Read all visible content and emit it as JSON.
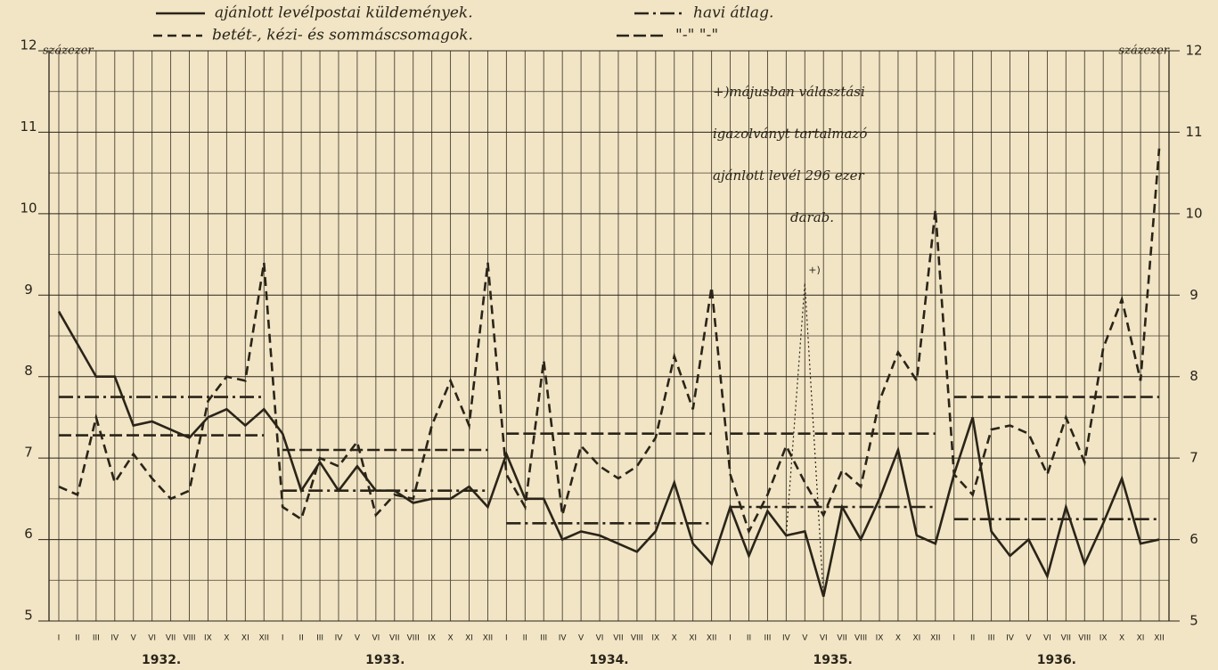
{
  "chart_data": {
    "type": "line",
    "unit_label_left": "százezer",
    "unit_label_right": "százezer",
    "categories": [
      "I",
      "II",
      "III",
      "IV",
      "V",
      "VI",
      "VII",
      "VIII",
      "IX",
      "X",
      "XI",
      "XII",
      "I",
      "II",
      "III",
      "IV",
      "V",
      "VI",
      "VII",
      "VIII",
      "IX",
      "X",
      "XI",
      "XII",
      "I",
      "II",
      "III",
      "IV",
      "V",
      "VI",
      "VII",
      "VIII",
      "IX",
      "X",
      "XI",
      "XII",
      "I",
      "II",
      "III",
      "IV",
      "V",
      "VI",
      "VII",
      "VIII",
      "IX",
      "X",
      "XI",
      "XII",
      "I",
      "II",
      "III",
      "IV",
      "V",
      "VI",
      "VII",
      "VIII",
      "IX",
      "X",
      "XI",
      "XII"
    ],
    "years": [
      "1932.",
      "1933.",
      "1934.",
      "1935.",
      "1936."
    ],
    "ylim": [
      5,
      12
    ],
    "yticks": [
      5,
      6,
      7,
      8,
      9,
      10,
      11,
      12
    ],
    "grid_yticks": [
      5.5,
      6.5,
      7.5,
      8.5,
      9.5,
      10.5,
      11.5
    ],
    "grid": true,
    "series": [
      {
        "name": "ajánlott levélpostai küldemények.",
        "color": "#2a2418",
        "style": "solid",
        "average_name": "havi átlag.",
        "average_style": "dashdot",
        "values": [
          8.8,
          8.4,
          8.0,
          8.0,
          7.4,
          7.45,
          7.35,
          7.25,
          7.5,
          7.6,
          7.4,
          7.6,
          7.3,
          6.6,
          6.95,
          6.6,
          6.9,
          6.6,
          6.6,
          6.45,
          6.5,
          6.5,
          6.65,
          6.4,
          7.05,
          6.5,
          6.5,
          6.0,
          6.1,
          6.05,
          5.95,
          5.85,
          6.1,
          6.7,
          5.95,
          5.7,
          6.4,
          5.8,
          6.35,
          6.05,
          6.1,
          5.3,
          6.4,
          6.0,
          6.5,
          7.1,
          6.05,
          5.95,
          6.8,
          7.5,
          6.1,
          5.8,
          6.0,
          5.55,
          6.4,
          5.7,
          6.2,
          6.75,
          5.95,
          6.0
        ],
        "averages": [
          7.75,
          6.6,
          6.2,
          6.4,
          6.25
        ]
      },
      {
        "name": "betét-, kézi- és sommáscsomagok.",
        "color": "#2a2418",
        "style": "dashed",
        "average_name": "\"-\"   \"-\"",
        "average_style": "longdash",
        "values": [
          6.65,
          6.55,
          7.5,
          6.7,
          7.05,
          6.75,
          6.5,
          6.6,
          7.7,
          8.0,
          7.95,
          9.4,
          6.4,
          6.25,
          7.0,
          6.9,
          7.2,
          6.3,
          6.55,
          6.5,
          7.4,
          7.95,
          7.4,
          9.4,
          6.8,
          6.4,
          8.2,
          6.3,
          7.15,
          6.9,
          6.75,
          6.9,
          7.25,
          8.25,
          7.6,
          9.1,
          6.8,
          6.1,
          6.55,
          7.15,
          6.7,
          6.3,
          6.85,
          6.65,
          7.7,
          8.3,
          7.95,
          10.05,
          6.8,
          6.55,
          7.35,
          7.4,
          7.3,
          6.8,
          7.5,
          6.95,
          8.35,
          8.95,
          7.95,
          10.8
        ],
        "averages": [
          7.28,
          7.1,
          7.3,
          7.3,
          7.75
        ]
      },
      {
        "label": "+)",
        "color": "#2a2418",
        "style": "dotted",
        "values": [
          null,
          null,
          null,
          null,
          null,
          null,
          null,
          null,
          null,
          null,
          null,
          null,
          null,
          null,
          null,
          null,
          null,
          null,
          null,
          null,
          null,
          null,
          null,
          null,
          null,
          null,
          null,
          null,
          null,
          null,
          null,
          null,
          null,
          null,
          null,
          null,
          null,
          null,
          null,
          6.05,
          9.15,
          5.3,
          null,
          null,
          null,
          null,
          null,
          null,
          null,
          null,
          null,
          null,
          null,
          null,
          null,
          null,
          null,
          null,
          null,
          null
        ]
      }
    ],
    "annotation": [
      "+)májusban választási",
      "igazolványt tartalmazó",
      "ajánlott levél 296 ezer",
      "darab."
    ]
  }
}
